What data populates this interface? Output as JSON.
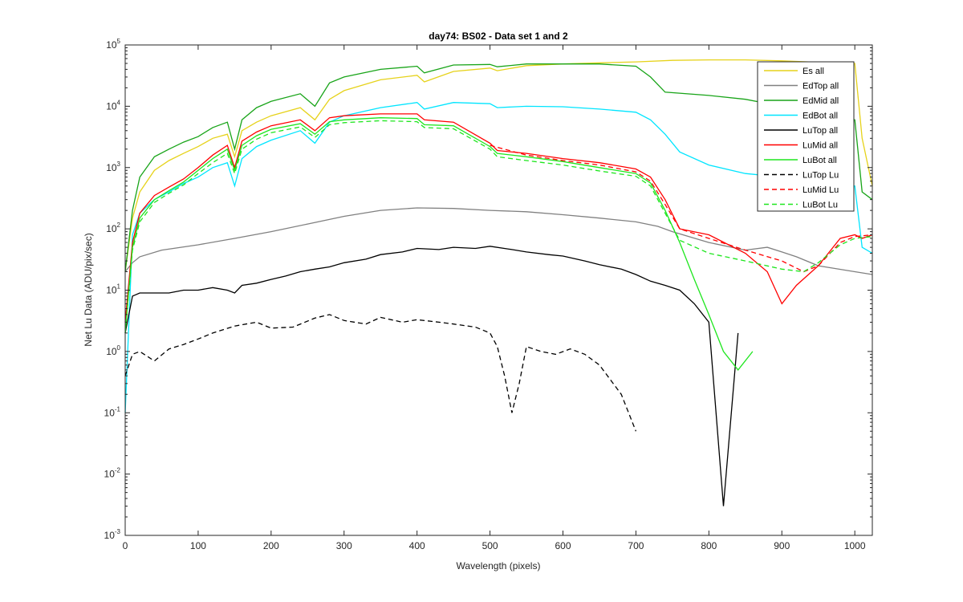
{
  "chart_data": {
    "type": "line",
    "title": "day74: BS02 - Data set 1 and 2",
    "xlabel": "Wavelength (pixels)",
    "ylabel": "Net Lu Data (ADU/pix/sec)",
    "xlim": [
      0,
      1024
    ],
    "ylim": [
      0.001,
      100000
    ],
    "yscale": "log",
    "xticks": [
      "0",
      "100",
      "200",
      "300",
      "400",
      "500",
      "600",
      "700",
      "800",
      "900",
      "1000"
    ],
    "yticks": [
      {
        "base": "10",
        "exp": "-3"
      },
      {
        "base": "10",
        "exp": "-2"
      },
      {
        "base": "10",
        "exp": "-1"
      },
      {
        "base": "10",
        "exp": "0"
      },
      {
        "base": "10",
        "exp": "1"
      },
      {
        "base": "10",
        "exp": "2"
      },
      {
        "base": "10",
        "exp": "3"
      },
      {
        "base": "10",
        "exp": "4"
      },
      {
        "base": "10",
        "exp": "5"
      }
    ],
    "grid": false,
    "legend_position": "top-right",
    "series": [
      {
        "name": "Es  all",
        "color": "#e6d21a",
        "dash": "solid",
        "x": [
          0,
          10,
          20,
          40,
          60,
          80,
          100,
          120,
          140,
          150,
          160,
          180,
          200,
          240,
          260,
          280,
          300,
          350,
          400,
          410,
          450,
          500,
          510,
          550,
          600,
          650,
          700,
          750,
          800,
          850,
          900,
          950,
          1000,
          1010,
          1024
        ],
        "y": [
          20,
          150,
          400,
          900,
          1300,
          1700,
          2200,
          3000,
          3500,
          1500,
          4000,
          5500,
          7000,
          9500,
          6000,
          13000,
          18000,
          27000,
          32000,
          25000,
          37000,
          42000,
          38000,
          46000,
          49000,
          51000,
          53000,
          56000,
          57000,
          57000,
          55000,
          52000,
          50000,
          3000,
          500
        ]
      },
      {
        "name": "EdTop  all",
        "color": "#808080",
        "dash": "solid",
        "x": [
          0,
          10,
          20,
          50,
          100,
          150,
          200,
          250,
          300,
          350,
          400,
          450,
          500,
          550,
          600,
          650,
          700,
          730,
          750,
          800,
          850,
          880,
          900,
          920,
          950,
          1000,
          1024
        ],
        "y": [
          20,
          28,
          35,
          45,
          55,
          70,
          90,
          120,
          160,
          200,
          220,
          215,
          200,
          190,
          170,
          150,
          130,
          110,
          90,
          60,
          45,
          50,
          42,
          35,
          25,
          20,
          18
        ]
      },
      {
        "name": "EdMid  all",
        "color": "#18a418",
        "dash": "solid",
        "x": [
          0,
          10,
          20,
          40,
          60,
          80,
          100,
          120,
          140,
          150,
          160,
          180,
          200,
          240,
          260,
          280,
          300,
          350,
          400,
          410,
          450,
          500,
          510,
          550,
          600,
          650,
          700,
          720,
          740,
          800,
          850,
          900,
          950,
          1000,
          1010,
          1024
        ],
        "y": [
          20,
          200,
          700,
          1500,
          2000,
          2600,
          3200,
          4500,
          5500,
          2000,
          6000,
          9500,
          12000,
          16000,
          10000,
          24000,
          30000,
          40000,
          45000,
          35000,
          47000,
          48000,
          44000,
          49000,
          49000,
          49000,
          45000,
          30000,
          17000,
          15000,
          13000,
          10000,
          8000,
          6000,
          400,
          300
        ]
      },
      {
        "name": "EdBot  all",
        "color": "#00e5ff",
        "dash": "solid",
        "x": [
          0,
          10,
          20,
          40,
          60,
          80,
          100,
          120,
          140,
          150,
          160,
          180,
          200,
          240,
          260,
          280,
          300,
          350,
          400,
          410,
          450,
          500,
          510,
          550,
          600,
          650,
          700,
          720,
          740,
          760,
          800,
          850,
          900,
          950,
          1000,
          1010,
          1024
        ],
        "y": [
          0.1,
          80,
          180,
          300,
          400,
          550,
          700,
          1000,
          1200,
          500,
          1400,
          2200,
          2800,
          4000,
          2500,
          5500,
          7000,
          9500,
          11500,
          9000,
          11500,
          11000,
          9500,
          10000,
          9800,
          9000,
          8000,
          6000,
          3500,
          1800,
          1100,
          800,
          700,
          600,
          500,
          50,
          40
        ]
      },
      {
        "name": "LuTop  all",
        "color": "#000000",
        "dash": "solid",
        "x": [
          0,
          10,
          20,
          40,
          60,
          80,
          100,
          120,
          140,
          150,
          160,
          180,
          200,
          220,
          240,
          260,
          280,
          300,
          330,
          350,
          380,
          400,
          430,
          450,
          480,
          500,
          530,
          550,
          580,
          600,
          630,
          650,
          680,
          700,
          720,
          740,
          760,
          780,
          800,
          820,
          840
        ],
        "y": [
          2,
          8,
          9,
          9,
          9,
          10,
          10,
          11,
          10,
          9,
          12,
          13,
          15,
          17,
          20,
          22,
          24,
          28,
          32,
          38,
          42,
          48,
          46,
          50,
          48,
          52,
          46,
          42,
          38,
          36,
          30,
          26,
          22,
          18,
          14,
          12,
          10,
          6,
          3,
          0.003,
          2
        ]
      },
      {
        "name": "LuMid  all",
        "color": "#ff0000",
        "dash": "solid",
        "x": [
          0,
          10,
          20,
          40,
          60,
          80,
          100,
          120,
          140,
          150,
          160,
          180,
          200,
          240,
          260,
          280,
          300,
          350,
          400,
          410,
          450,
          500,
          510,
          550,
          600,
          650,
          700,
          720,
          740,
          760,
          800,
          850,
          880,
          900,
          920,
          950,
          980,
          1000,
          1010,
          1024
        ],
        "y": [
          3,
          60,
          180,
          350,
          480,
          650,
          1000,
          1600,
          2300,
          1000,
          2700,
          3800,
          4800,
          6000,
          4000,
          6500,
          7000,
          7500,
          7500,
          6000,
          5500,
          2500,
          1900,
          1700,
          1400,
          1200,
          950,
          700,
          300,
          100,
          80,
          40,
          20,
          6,
          12,
          25,
          70,
          80,
          70,
          80
        ]
      },
      {
        "name": "LuBot  all",
        "color": "#1ee61e",
        "dash": "solid",
        "x": [
          0,
          10,
          20,
          40,
          60,
          80,
          100,
          120,
          140,
          150,
          160,
          180,
          200,
          240,
          260,
          280,
          300,
          350,
          400,
          410,
          450,
          500,
          510,
          550,
          600,
          650,
          700,
          720,
          740,
          760,
          780,
          800,
          820,
          840,
          860
        ],
        "y": [
          2,
          50,
          150,
          300,
          420,
          580,
          900,
          1400,
          2000,
          900,
          2300,
          3300,
          4200,
          5200,
          3500,
          5600,
          6000,
          6500,
          6300,
          5000,
          4800,
          2200,
          1700,
          1500,
          1250,
          1000,
          800,
          560,
          200,
          60,
          15,
          4,
          1,
          0.5,
          1
        ]
      },
      {
        "name": "LuTop  Lu",
        "color": "#000000",
        "dash": "dashed",
        "x": [
          0,
          10,
          20,
          40,
          60,
          80,
          100,
          120,
          150,
          180,
          200,
          230,
          260,
          280,
          300,
          330,
          350,
          380,
          400,
          430,
          450,
          480,
          500,
          510,
          520,
          530,
          540,
          550,
          570,
          590,
          610,
          630,
          650,
          680,
          700
        ],
        "y": [
          0.4,
          0.9,
          1.0,
          0.7,
          1.1,
          1.3,
          1.6,
          2.0,
          2.6,
          3.0,
          2.4,
          2.5,
          3.5,
          4.0,
          3.2,
          2.8,
          3.6,
          3.0,
          3.3,
          3.0,
          2.8,
          2.5,
          2.0,
          1.2,
          0.4,
          0.1,
          0.3,
          1.2,
          1.0,
          0.9,
          1.1,
          0.9,
          0.6,
          0.2,
          0.05
        ]
      },
      {
        "name": "LuMid  Lu",
        "color": "#ff0000",
        "dash": "dashed",
        "x": [
          500,
          550,
          600,
          650,
          700,
          720,
          740,
          760,
          800,
          850,
          900,
          930,
          950,
          980,
          1000,
          1024
        ],
        "y": [
          2300,
          1600,
          1300,
          1100,
          850,
          600,
          250,
          100,
          70,
          45,
          30,
          20,
          25,
          60,
          75,
          80
        ]
      },
      {
        "name": "LuBot  Lu",
        "color": "#1ee61e",
        "dash": "dashed",
        "x": [
          0,
          10,
          20,
          40,
          60,
          80,
          100,
          120,
          140,
          150,
          160,
          180,
          200,
          240,
          260,
          280,
          300,
          350,
          400,
          410,
          450,
          500,
          510,
          550,
          600,
          650,
          700,
          720,
          740,
          760,
          800,
          850,
          900,
          930,
          950,
          980,
          1000,
          1024
        ],
        "y": [
          2,
          45,
          130,
          270,
          380,
          520,
          800,
          1200,
          1700,
          800,
          2000,
          2900,
          3700,
          4600,
          3100,
          5000,
          5400,
          5800,
          5600,
          4500,
          4300,
          2000,
          1500,
          1300,
          1100,
          880,
          720,
          500,
          180,
          65,
          40,
          30,
          22,
          20,
          28,
          55,
          70,
          75
        ]
      }
    ]
  }
}
